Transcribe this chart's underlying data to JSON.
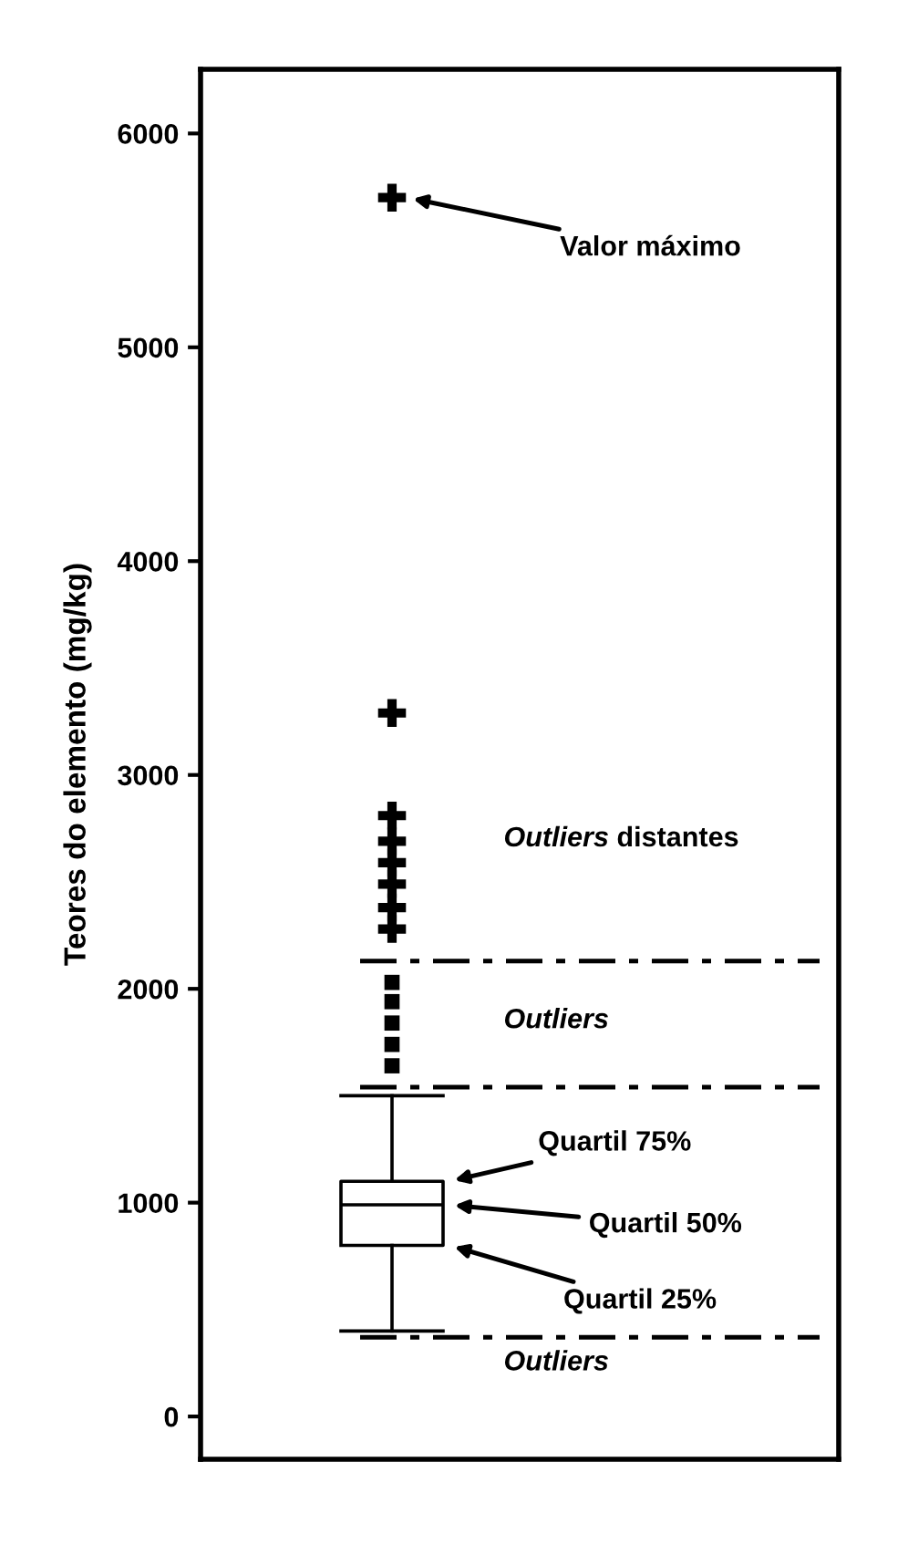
{
  "chart_data": {
    "type": "box",
    "ylabel": "Teores do elemento (mg/kg)",
    "categories": [
      null
    ],
    "ylim": [
      -200,
      6300
    ],
    "yticks": [
      0,
      1000,
      2000,
      3000,
      4000,
      5000,
      6000
    ],
    "grid": false,
    "legend": false,
    "series": [
      {
        "color": "#000000",
        "boxes": [
          {
            "low": 400,
            "q1": 800,
            "median": 990,
            "q3": 1100,
            "high": 1500
          }
        ]
      },
      {
        "type": "scatter",
        "marker": "square",
        "color": "#000000",
        "x": [
          null,
          null,
          null,
          null,
          null
        ],
        "values": [
          1640,
          1740,
          1840,
          1940,
          2030
        ]
      },
      {
        "type": "scatter",
        "marker": "cross",
        "color": "#000000",
        "x": [
          null,
          null,
          null,
          null,
          null,
          null,
          null,
          null
        ],
        "values": [
          2280,
          2380,
          2490,
          2590,
          2690,
          2810,
          3290,
          5700
        ]
      }
    ],
    "ref_lines": [
      {
        "axis": "y",
        "value": 2130,
        "color": "#000000",
        "line_style": "dashdot"
      },
      {
        "axis": "y",
        "value": 1540,
        "color": "#000000",
        "line_style": "dashdot"
      },
      {
        "axis": "y",
        "value": 370,
        "color": "#000000",
        "line_style": "dashdot"
      }
    ],
    "annotations": [
      "Valor máximo",
      "Quartil 75%",
      "Quartil 50%",
      "Quartil 25%",
      "Outliers distantes",
      "Outliers",
      "Outliers"
    ]
  }
}
